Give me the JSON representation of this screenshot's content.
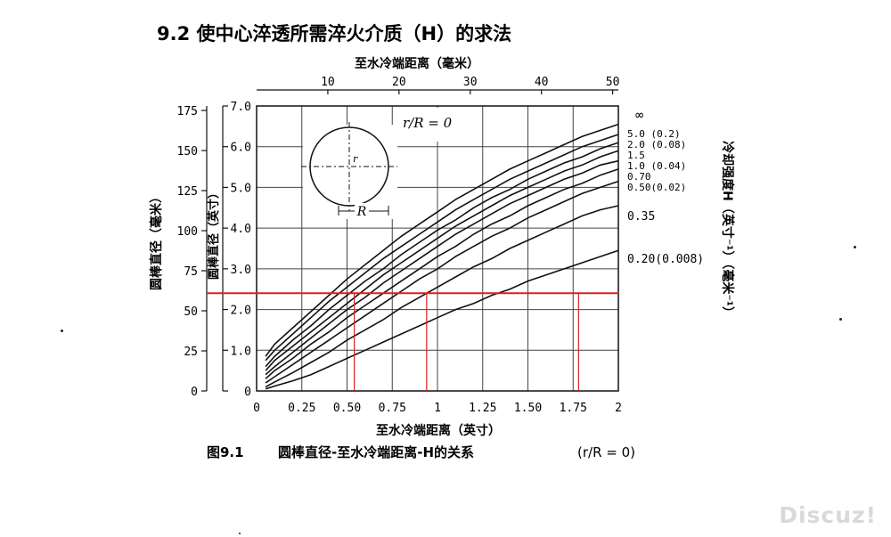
{
  "section_heading": "9.2  使中心淬透所需淬火介质（H）的求法",
  "chart_data": {
    "type": "line",
    "top_axis_label": "至水冷端距离（毫米）",
    "top_axis_ticks": [
      "10",
      "20",
      "30",
      "40",
      "50"
    ],
    "top_axis_values_mm": [
      10,
      20,
      30,
      40,
      50
    ],
    "xlabel": "至水冷端距离（英寸）",
    "x_ticks": [
      "0",
      "0.25",
      "0.50",
      "0.75",
      "1",
      "1.25",
      "1.50",
      "1.75",
      "2"
    ],
    "xlim": [
      0,
      2
    ],
    "ylabel_outer": "圆棒直径（毫米）",
    "y_outer_ticks": [
      "175",
      "150",
      "125",
      "100",
      "75",
      "50",
      "25",
      "0"
    ],
    "ylabel_inner": "圆棒直径（英寸）",
    "y_inner_ticks": [
      "7.0",
      "6.0",
      "5.0",
      "4.0",
      "3.0",
      "2.0",
      "1.0",
      "0"
    ],
    "ylim_in": [
      0,
      7
    ],
    "right_axis_label": "冷却强度H（英寸⁻¹）（毫米⁻¹）",
    "inset_ratio_label": "r/R = 0",
    "inset_r_label": "r",
    "inset_R_label": "R",
    "series": [
      {
        "name": "∞",
        "label": "∞",
        "x": [
          0.05,
          0.1,
          0.2,
          0.3,
          0.4,
          0.5,
          0.6,
          0.7,
          0.8,
          0.9,
          1.0,
          1.1,
          1.2,
          1.3,
          1.4,
          1.5,
          1.6,
          1.7,
          1.8,
          1.9,
          2.0
        ],
        "y": [
          0.85,
          1.15,
          1.55,
          1.95,
          2.35,
          2.75,
          3.1,
          3.45,
          3.8,
          4.1,
          4.4,
          4.7,
          4.95,
          5.2,
          5.45,
          5.65,
          5.85,
          6.05,
          6.25,
          6.4,
          6.55
        ]
      },
      {
        "name": "5.0 (0.2)",
        "label": "5.0 (0.2)",
        "x": [
          0.05,
          0.1,
          0.2,
          0.3,
          0.4,
          0.5,
          0.6,
          0.7,
          0.8,
          0.9,
          1.0,
          1.1,
          1.2,
          1.3,
          1.4,
          1.5,
          1.6,
          1.7,
          1.8,
          1.9,
          2.0
        ],
        "y": [
          0.75,
          1.0,
          1.4,
          1.8,
          2.2,
          2.55,
          2.9,
          3.25,
          3.55,
          3.85,
          4.15,
          4.45,
          4.7,
          4.95,
          5.2,
          5.4,
          5.6,
          5.8,
          6.0,
          6.15,
          6.3
        ]
      },
      {
        "name": "2.0 (0.08)",
        "label": "2.0 (0.08)",
        "x": [
          0.05,
          0.1,
          0.2,
          0.3,
          0.4,
          0.5,
          0.6,
          0.7,
          0.8,
          0.9,
          1.0,
          1.1,
          1.2,
          1.3,
          1.4,
          1.5,
          1.6,
          1.7,
          1.8,
          1.9,
          2.0
        ],
        "y": [
          0.6,
          0.85,
          1.25,
          1.6,
          2.0,
          2.35,
          2.7,
          3.0,
          3.35,
          3.65,
          3.95,
          4.2,
          4.5,
          4.75,
          4.95,
          5.2,
          5.4,
          5.6,
          5.75,
          5.95,
          6.1
        ]
      },
      {
        "name": "1.5",
        "label": "1.5",
        "x": [
          0.05,
          0.1,
          0.2,
          0.3,
          0.4,
          0.5,
          0.6,
          0.7,
          0.8,
          0.9,
          1.0,
          1.1,
          1.2,
          1.3,
          1.4,
          1.5,
          1.6,
          1.7,
          1.8,
          1.9,
          2.0
        ],
        "y": [
          0.5,
          0.75,
          1.1,
          1.45,
          1.8,
          2.15,
          2.5,
          2.85,
          3.15,
          3.45,
          3.75,
          4.05,
          4.3,
          4.55,
          4.8,
          5.0,
          5.2,
          5.4,
          5.55,
          5.75,
          5.9
        ]
      },
      {
        "name": "1.0 (0.04)",
        "label": "1.0 (0.04)",
        "x": [
          0.05,
          0.1,
          0.2,
          0.3,
          0.4,
          0.5,
          0.6,
          0.7,
          0.8,
          0.9,
          1.0,
          1.1,
          1.2,
          1.3,
          1.4,
          1.5,
          1.6,
          1.7,
          1.8,
          1.9,
          2.0
        ],
        "y": [
          0.4,
          0.6,
          0.95,
          1.3,
          1.65,
          2.0,
          2.3,
          2.65,
          2.95,
          3.25,
          3.55,
          3.85,
          4.1,
          4.35,
          4.6,
          4.8,
          5.0,
          5.2,
          5.35,
          5.55,
          5.65
        ]
      },
      {
        "name": "0.70",
        "label": "0.70",
        "x": [
          0.05,
          0.1,
          0.2,
          0.3,
          0.4,
          0.5,
          0.6,
          0.7,
          0.8,
          0.9,
          1.0,
          1.1,
          1.2,
          1.3,
          1.4,
          1.5,
          1.6,
          1.7,
          1.8,
          1.9,
          2.0
        ],
        "y": [
          0.3,
          0.5,
          0.8,
          1.15,
          1.45,
          1.8,
          2.1,
          2.4,
          2.7,
          3.0,
          3.3,
          3.55,
          3.85,
          4.1,
          4.3,
          4.55,
          4.75,
          4.95,
          5.1,
          5.3,
          5.45
        ]
      },
      {
        "name": "0.50 (0.02)",
        "label": "0.50(0.02)",
        "x": [
          0.05,
          0.1,
          0.2,
          0.3,
          0.4,
          0.5,
          0.6,
          0.7,
          0.8,
          0.9,
          1.0,
          1.1,
          1.2,
          1.3,
          1.4,
          1.5,
          1.6,
          1.7,
          1.8,
          1.9,
          2.0
        ],
        "y": [
          0.2,
          0.35,
          0.65,
          0.95,
          1.25,
          1.55,
          1.85,
          2.15,
          2.45,
          2.75,
          3.0,
          3.3,
          3.55,
          3.8,
          4.0,
          4.25,
          4.45,
          4.65,
          4.85,
          5.0,
          5.15
        ]
      },
      {
        "name": "0.35",
        "label": "0.35",
        "x": [
          0.05,
          0.1,
          0.2,
          0.3,
          0.4,
          0.5,
          0.6,
          0.7,
          0.8,
          0.9,
          1.0,
          1.1,
          1.2,
          1.3,
          1.4,
          1.5,
          1.6,
          1.7,
          1.8,
          1.9,
          2.0
        ],
        "y": [
          0.1,
          0.22,
          0.45,
          0.7,
          0.95,
          1.25,
          1.5,
          1.75,
          2.05,
          2.3,
          2.55,
          2.8,
          3.05,
          3.25,
          3.5,
          3.7,
          3.9,
          4.1,
          4.3,
          4.45,
          4.55
        ]
      },
      {
        "name": "0.20 (0.008)",
        "label": "0.20(0.008)",
        "x": [
          0.05,
          0.1,
          0.2,
          0.3,
          0.4,
          0.5,
          0.6,
          0.7,
          0.8,
          0.9,
          1.0,
          1.1,
          1.2,
          1.3,
          1.4,
          1.5,
          1.6,
          1.7,
          1.8,
          1.9,
          2.0
        ],
        "y": [
          0.05,
          0.12,
          0.25,
          0.4,
          0.6,
          0.8,
          1.0,
          1.2,
          1.4,
          1.6,
          1.8,
          2.0,
          2.15,
          2.35,
          2.5,
          2.7,
          2.85,
          3.0,
          3.15,
          3.3,
          3.45
        ]
      }
    ],
    "annotation_lines": {
      "color": "#d92020",
      "horizontal_y_in": 2.4,
      "vertical_x_in": [
        0.54,
        0.94,
        1.78
      ]
    },
    "grid": true
  },
  "caption": {
    "figure_no": "图9.1",
    "text": "圆棒直径-至水冷端距离-H的关系",
    "condition": "(r/R = 0)"
  },
  "watermark": "Discuz!"
}
